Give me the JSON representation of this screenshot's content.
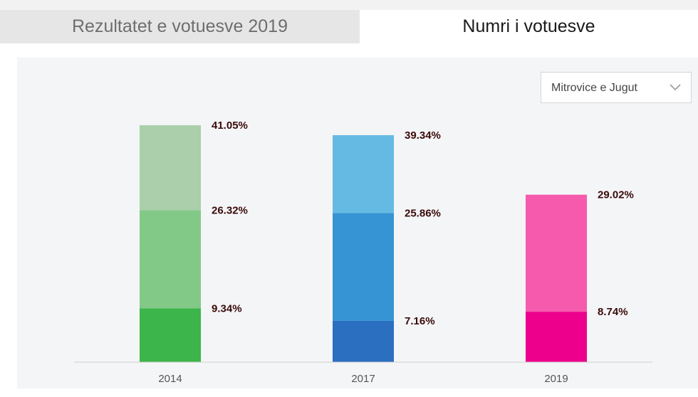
{
  "tabs": [
    {
      "label": "Rezultatet e votuesve 2019",
      "active": false
    },
    {
      "label": "Numri i votuesve",
      "active": true
    }
  ],
  "filter": {
    "selected": "Mitrovice e Jugut",
    "icon": "chevron-down-icon"
  },
  "chart_data": {
    "type": "bar",
    "title": "",
    "xlabel": "",
    "ylabel": "",
    "ylim": [
      0,
      45
    ],
    "grid": false,
    "categories": [
      "2014",
      "2017",
      "2019"
    ],
    "series": [
      {
        "values": [
          9.34,
          7.16,
          8.74
        ],
        "colors": [
          "#3cb54a",
          "#2a6fc0",
          "#ec008c"
        ],
        "labels": [
          "9.34%",
          "7.16%",
          "8.74%"
        ]
      },
      {
        "values": [
          26.32,
          25.86,
          null
        ],
        "colors": [
          "#82c987",
          "#3694d4",
          null
        ],
        "labels": [
          "26.32%",
          "25.86%",
          null
        ]
      },
      {
        "values": [
          41.05,
          39.34,
          29.02
        ],
        "colors": [
          "#aacfaa",
          "#65bae3",
          "#f55aac"
        ],
        "labels": [
          "41.05%",
          "39.34%",
          "29.02%"
        ]
      }
    ]
  }
}
